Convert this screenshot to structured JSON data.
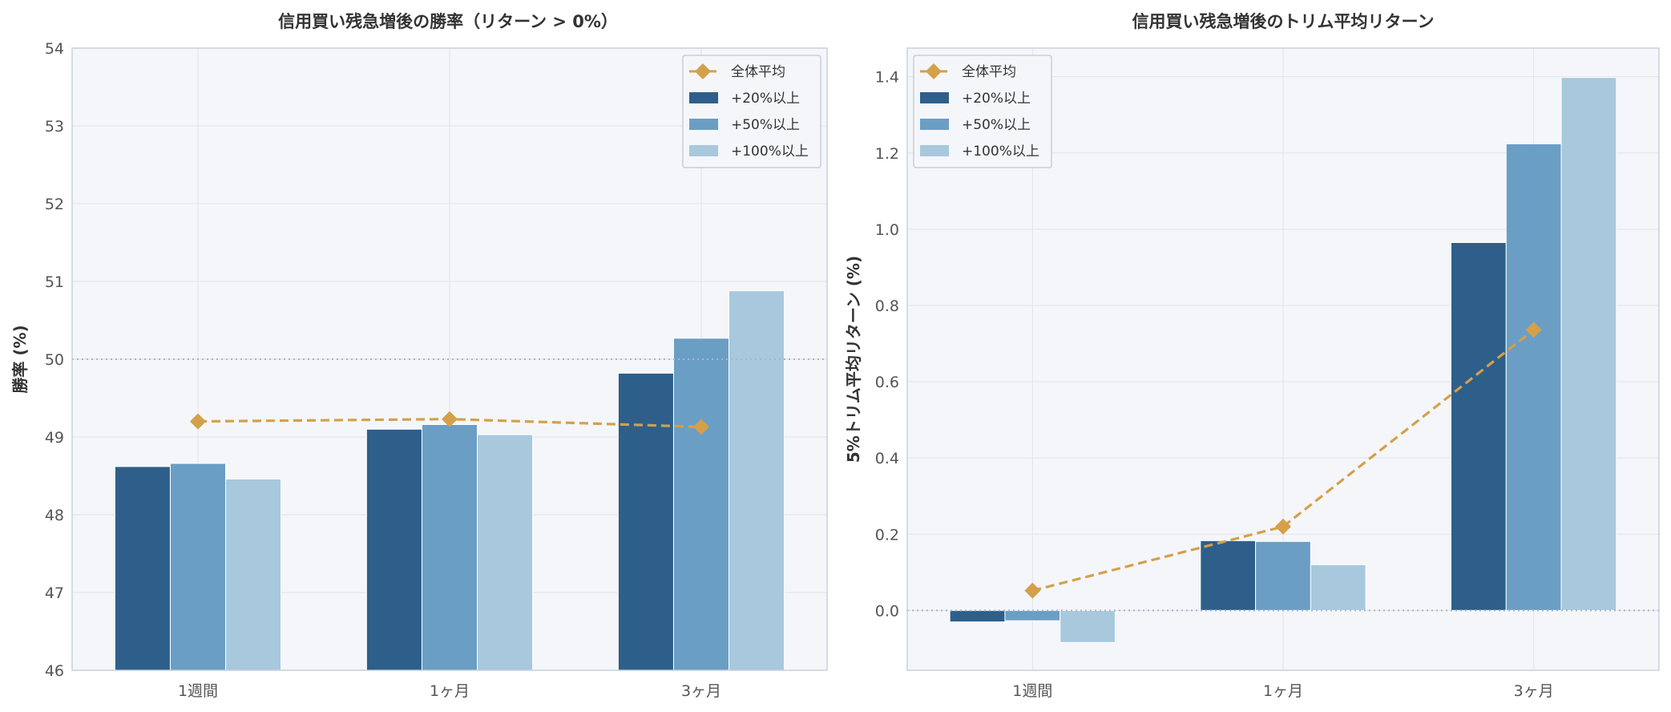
{
  "colors": {
    "avg": "#d4a04a",
    "s20": "#2d5f8a",
    "s50": "#6b9ec4",
    "s100": "#a8c8dd",
    "plot_bg": "#f4f6fa",
    "refline": "#a9b6c6"
  },
  "chart_data": [
    {
      "type": "bar",
      "title": "信用買い残急増後の勝率（リターン > 0%）",
      "xlabel": "",
      "ylabel": "勝率 (%)",
      "categories": [
        "1週間",
        "1ヶ月",
        "3ヶ月"
      ],
      "ylim": [
        46,
        54
      ],
      "yticks": [
        "46",
        "47",
        "48",
        "49",
        "50",
        "51",
        "52",
        "53",
        "54"
      ],
      "reference_line": 50,
      "grid": true,
      "legend_position": "top-right",
      "legend_entries": [
        "全体平均",
        "+20%以上",
        "+50%以上",
        "+100%以上"
      ],
      "series": [
        {
          "name": "+20%以上",
          "values": [
            48.62,
            49.1,
            49.82
          ]
        },
        {
          "name": "+50%以上",
          "values": [
            48.66,
            49.16,
            50.27
          ]
        },
        {
          "name": "+100%以上",
          "values": [
            48.46,
            49.03,
            50.88
          ]
        }
      ],
      "line_series": {
        "name": "全体平均",
        "values": [
          49.2,
          49.23,
          49.13
        ]
      }
    },
    {
      "type": "bar",
      "title": "信用買い残急増後のトリム平均リターン",
      "xlabel": "",
      "ylabel": "5%トリム平均リターン (%)",
      "categories": [
        "1週間",
        "1ヶ月",
        "3ヶ月"
      ],
      "ylim": [
        -0.157,
        1.475
      ],
      "yticks": [
        "0.0",
        "0.2",
        "0.4",
        "0.6",
        "0.8",
        "1.0",
        "1.2",
        "1.4"
      ],
      "reference_line": 0,
      "grid": true,
      "legend_position": "top-left",
      "legend_entries": [
        "全体平均",
        "+20%以上",
        "+50%以上",
        "+100%以上"
      ],
      "series": [
        {
          "name": "+20%以上",
          "values": [
            -0.03,
            0.183,
            0.965
          ]
        },
        {
          "name": "+50%以上",
          "values": [
            -0.027,
            0.181,
            1.224
          ]
        },
        {
          "name": "+100%以上",
          "values": [
            -0.084,
            0.12,
            1.398
          ]
        }
      ],
      "line_series": {
        "name": "全体平均",
        "values": [
          0.052,
          0.22,
          0.736
        ]
      }
    }
  ]
}
